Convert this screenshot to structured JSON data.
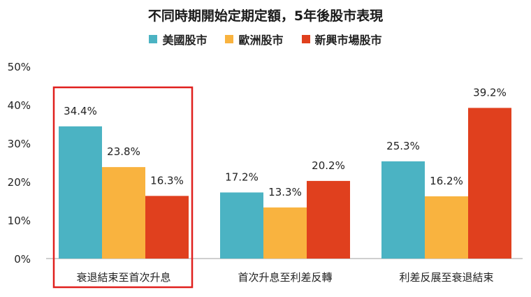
{
  "chart_data": {
    "type": "bar",
    "title": "不同時期開始定期定額，5年後股市表現",
    "categories": [
      "衰退結束至首次升息",
      "首次升息至利差反轉",
      "利差反展至衰退結束"
    ],
    "series": [
      {
        "name": "美國股市",
        "color": "#4bb3c3",
        "values": [
          34.4,
          17.2,
          25.3
        ],
        "labels": [
          "34.4%",
          "17.2%",
          "25.3%"
        ]
      },
      {
        "name": "歐洲股市",
        "color": "#f9b33f",
        "values": [
          23.8,
          13.3,
          16.2
        ],
        "labels": [
          "23.8%",
          "13.3%",
          "16.2%"
        ]
      },
      {
        "name": "新興市場股市",
        "color": "#e0401e",
        "values": [
          16.3,
          20.2,
          39.2
        ],
        "labels": [
          "16.3%",
          "20.2%",
          "39.2%"
        ]
      }
    ],
    "yticks": [
      "0%",
      "10%",
      "20%",
      "30%",
      "40%",
      "50%"
    ],
    "ylim": [
      0,
      50
    ],
    "grid": false,
    "legend_position": "top-center",
    "highlight": {
      "category_index": 0,
      "color": "#e0201e"
    }
  }
}
